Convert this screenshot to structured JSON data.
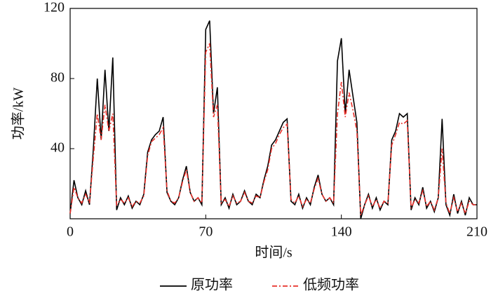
{
  "chart_data": {
    "type": "line",
    "xlabel": "时间/s",
    "ylabel": "功率/kW",
    "xlim": [
      0,
      210
    ],
    "ylim": [
      0,
      120
    ],
    "xticks": [
      0,
      70,
      140,
      210
    ],
    "yticks": [
      40,
      80,
      120
    ],
    "legend": "bottom",
    "x": [
      0,
      2,
      4,
      6,
      8,
      10,
      12,
      14,
      16,
      18,
      20,
      22,
      24,
      26,
      28,
      30,
      32,
      34,
      36,
      38,
      40,
      42,
      44,
      46,
      48,
      50,
      52,
      54,
      56,
      58,
      60,
      62,
      64,
      66,
      68,
      70,
      72,
      74,
      76,
      78,
      80,
      82,
      84,
      86,
      88,
      90,
      92,
      94,
      96,
      98,
      100,
      102,
      104,
      106,
      108,
      110,
      112,
      114,
      116,
      118,
      120,
      122,
      124,
      126,
      128,
      130,
      132,
      134,
      136,
      138,
      140,
      142,
      144,
      146,
      148,
      150,
      152,
      154,
      156,
      158,
      160,
      162,
      164,
      166,
      168,
      170,
      172,
      174,
      176,
      178,
      180,
      182,
      184,
      186,
      188,
      190,
      192,
      194,
      196,
      198,
      200,
      202,
      204,
      206,
      208,
      210
    ],
    "series": [
      {
        "name": "原功率",
        "color": "#000000",
        "dash": "solid",
        "values": [
          3,
          22,
          12,
          8,
          16,
          8,
          40,
          80,
          45,
          85,
          50,
          92,
          5,
          12,
          8,
          13,
          6,
          10,
          8,
          14,
          38,
          45,
          48,
          50,
          58,
          15,
          10,
          8,
          12,
          22,
          30,
          15,
          10,
          12,
          8,
          108,
          113,
          60,
          75,
          8,
          12,
          6,
          14,
          8,
          10,
          16,
          10,
          8,
          14,
          12,
          22,
          30,
          42,
          45,
          50,
          55,
          57,
          10,
          8,
          14,
          6,
          12,
          8,
          18,
          25,
          14,
          10,
          12,
          8,
          90,
          103,
          60,
          85,
          70,
          55,
          0,
          8,
          14,
          6,
          12,
          5,
          10,
          8,
          45,
          50,
          60,
          58,
          60,
          5,
          12,
          8,
          18,
          6,
          10,
          4,
          12,
          57,
          8,
          2,
          14,
          3,
          10,
          2,
          12,
          8,
          8
        ]
      },
      {
        "name": "低频功率",
        "color": "#e8302a",
        "dash": "dashdot",
        "values": [
          3,
          18,
          12,
          9,
          14,
          9,
          35,
          60,
          45,
          65,
          50,
          60,
          8,
          11,
          9,
          12,
          7,
          10,
          9,
          13,
          36,
          44,
          46,
          48,
          52,
          16,
          10,
          9,
          12,
          21,
          28,
          15,
          10,
          12,
          9,
          95,
          100,
          58,
          65,
          9,
          11,
          7,
          13,
          9,
          10,
          15,
          10,
          9,
          13,
          12,
          21,
          28,
          40,
          43,
          48,
          52,
          54,
          11,
          9,
          13,
          7,
          11,
          9,
          17,
          23,
          14,
          10,
          12,
          9,
          60,
          78,
          58,
          72,
          62,
          50,
          2,
          8,
          13,
          7,
          11,
          6,
          10,
          9,
          42,
          48,
          55,
          54,
          56,
          6,
          11,
          9,
          16,
          7,
          10,
          5,
          12,
          40,
          9,
          3,
          12,
          4,
          9,
          3,
          10,
          8,
          8
        ]
      }
    ]
  }
}
